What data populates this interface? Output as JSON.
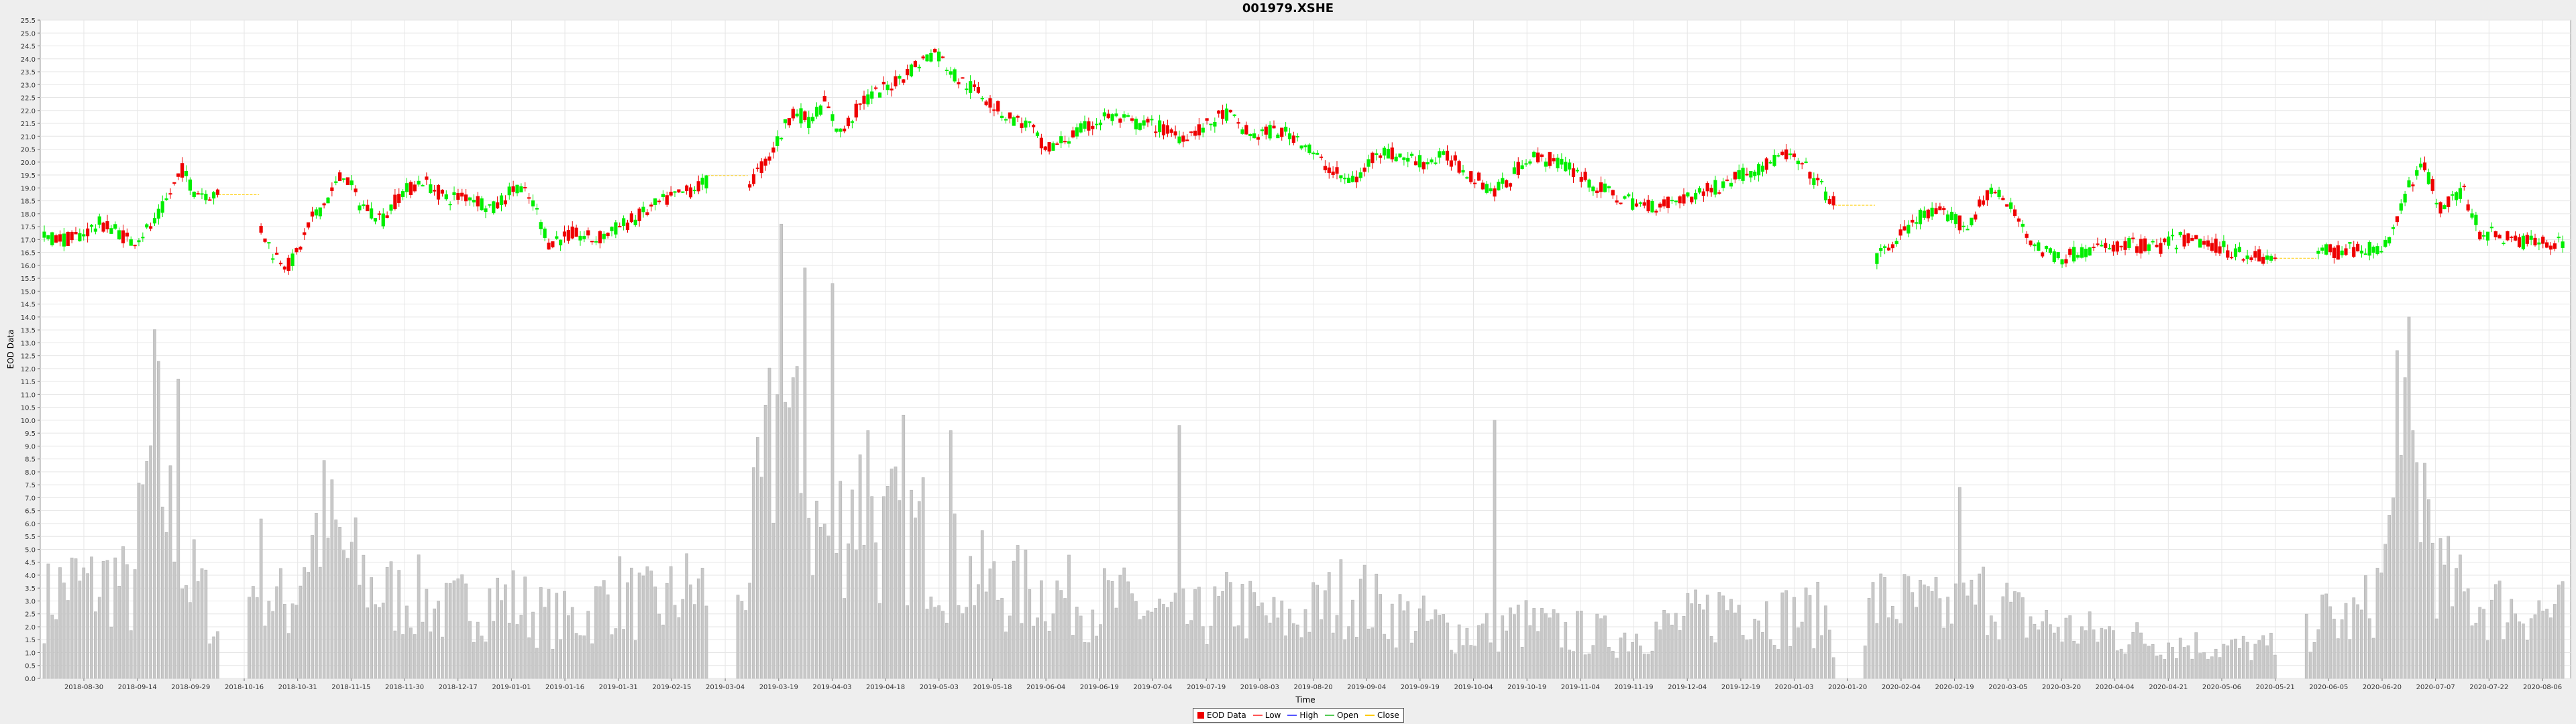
{
  "chart_data": {
    "type": "candlestick",
    "title": "001979.XSHE",
    "xlabel": "Time",
    "ylabel": "EOD Data",
    "ylim": [
      0.0,
      25.5
    ],
    "ytick_step": 0.5,
    "grid": true,
    "x_tick_labels": [
      "2018-08-30",
      "2018-09-14",
      "2018-09-29",
      "2018-10-16",
      "2018-10-31",
      "2018-11-15",
      "2018-11-30",
      "2018-12-17",
      "2019-01-01",
      "2019-01-16",
      "2019-01-31",
      "2019-02-15",
      "2019-03-04",
      "2019-03-19",
      "2019-04-03",
      "2019-04-18",
      "2019-05-03",
      "2019-05-18",
      "2019-06-04",
      "2019-06-19",
      "2019-07-04",
      "2019-07-19",
      "2019-08-03",
      "2019-08-20",
      "2019-09-04",
      "2019-09-19",
      "2019-10-04",
      "2019-10-19",
      "2019-11-04",
      "2019-11-19",
      "2019-12-04",
      "2019-12-19",
      "2020-01-03",
      "2020-01-20",
      "2020-02-04",
      "2020-02-19",
      "2020-03-05",
      "2020-03-20",
      "2020-04-04",
      "2020-04-21",
      "2020-05-06",
      "2020-05-21",
      "2020-06-05",
      "2020-06-20",
      "2020-07-07",
      "2020-07-22",
      "2020-08-06"
    ],
    "price_path": [
      [
        0,
        17.1
      ],
      [
        7,
        17.0
      ],
      [
        14,
        17.6
      ],
      [
        18,
        17.4
      ],
      [
        22,
        16.9
      ],
      [
        28,
        17.6
      ],
      [
        32,
        18.8
      ],
      [
        35,
        19.7
      ],
      [
        38,
        18.9
      ],
      [
        44,
        18.7
      ],
      [
        48,
        null
      ],
      [
        54,
        17.7
      ],
      [
        58,
        16.5
      ],
      [
        62,
        16.0
      ],
      [
        64,
        16.4
      ],
      [
        68,
        17.8
      ],
      [
        72,
        18.6
      ],
      [
        76,
        19.6
      ],
      [
        80,
        18.4
      ],
      [
        86,
        17.8
      ],
      [
        90,
        18.7
      ],
      [
        96,
        19.3
      ],
      [
        102,
        18.6
      ],
      [
        108,
        18.7
      ],
      [
        114,
        18.2
      ],
      [
        120,
        19.1
      ],
      [
        124,
        18.4
      ],
      [
        128,
        16.9
      ],
      [
        134,
        17.2
      ],
      [
        140,
        17.0
      ],
      [
        146,
        17.5
      ],
      [
        150,
        17.8
      ],
      [
        156,
        18.4
      ],
      [
        162,
        18.8
      ],
      [
        168,
        19.2
      ],
      [
        172,
        null
      ],
      [
        178,
        19.0
      ],
      [
        184,
        20.2
      ],
      [
        190,
        22.0
      ],
      [
        194,
        21.6
      ],
      [
        198,
        22.3
      ],
      [
        202,
        21.1
      ],
      [
        208,
        22.4
      ],
      [
        214,
        22.9
      ],
      [
        220,
        23.6
      ],
      [
        226,
        24.3
      ],
      [
        232,
        23.2
      ],
      [
        238,
        22.6
      ],
      [
        244,
        21.8
      ],
      [
        250,
        21.4
      ],
      [
        254,
        20.4
      ],
      [
        258,
        20.8
      ],
      [
        264,
        21.3
      ],
      [
        270,
        21.8
      ],
      [
        276,
        21.5
      ],
      [
        282,
        21.4
      ],
      [
        288,
        21.0
      ],
      [
        294,
        21.3
      ],
      [
        300,
        21.9
      ],
      [
        306,
        21.0
      ],
      [
        312,
        21.2
      ],
      [
        318,
        21.0
      ],
      [
        324,
        20.0
      ],
      [
        330,
        19.3
      ],
      [
        334,
        19.4
      ],
      [
        338,
        20.5
      ],
      [
        344,
        20.2
      ],
      [
        350,
        20.0
      ],
      [
        356,
        20.2
      ],
      [
        362,
        19.5
      ],
      [
        368,
        18.9
      ],
      [
        372,
        19.3
      ],
      [
        376,
        20.2
      ],
      [
        382,
        20.1
      ],
      [
        388,
        19.7
      ],
      [
        394,
        19.0
      ],
      [
        400,
        18.6
      ],
      [
        406,
        18.3
      ],
      [
        412,
        18.4
      ],
      [
        418,
        18.7
      ],
      [
        424,
        19.0
      ],
      [
        430,
        19.5
      ],
      [
        436,
        19.8
      ],
      [
        442,
        20.3
      ],
      [
        448,
        19.6
      ],
      [
        454,
        18.4
      ],
      [
        458,
        null
      ],
      [
        464,
        16.1
      ],
      [
        470,
        17.0
      ],
      [
        476,
        17.9
      ],
      [
        482,
        18.0
      ],
      [
        488,
        17.5
      ],
      [
        494,
        19.0
      ],
      [
        500,
        18.0
      ],
      [
        506,
        16.6
      ],
      [
        512,
        16.3
      ],
      [
        518,
        16.6
      ],
      [
        524,
        16.7
      ],
      [
        530,
        16.8
      ],
      [
        536,
        16.7
      ],
      [
        542,
        17.0
      ],
      [
        548,
        16.9
      ],
      [
        554,
        16.6
      ],
      [
        560,
        16.4
      ],
      [
        566,
        16.2
      ],
      [
        570,
        null
      ],
      [
        576,
        16.6
      ],
      [
        582,
        16.5
      ],
      [
        588,
        16.7
      ],
      [
        592,
        16.5
      ],
      [
        596,
        17.3
      ],
      [
        600,
        19.2
      ],
      [
        604,
        19.8
      ],
      [
        608,
        18.3
      ],
      [
        614,
        18.8
      ],
      [
        618,
        17.3
      ],
      [
        624,
        17.1
      ],
      [
        630,
        16.9
      ],
      [
        636,
        16.9
      ]
    ],
    "volume_path": [
      [
        0,
        3.0
      ],
      [
        6,
        3.8
      ],
      [
        12,
        3.6
      ],
      [
        18,
        4.0
      ],
      [
        22,
        3.2
      ],
      [
        28,
        9.6
      ],
      [
        32,
        6.2
      ],
      [
        36,
        4.0
      ],
      [
        40,
        3.5
      ],
      [
        48,
        0
      ],
      [
        54,
        4.8
      ],
      [
        58,
        3.2
      ],
      [
        62,
        2.8
      ],
      [
        66,
        4.8
      ],
      [
        70,
        6.2
      ],
      [
        74,
        5.5
      ],
      [
        78,
        4.5
      ],
      [
        84,
        3.5
      ],
      [
        90,
        3.2
      ],
      [
        96,
        3.2
      ],
      [
        102,
        2.6
      ],
      [
        108,
        3.0
      ],
      [
        114,
        3.2
      ],
      [
        120,
        3.0
      ],
      [
        126,
        2.5
      ],
      [
        132,
        2.3
      ],
      [
        138,
        2.5
      ],
      [
        144,
        3.5
      ],
      [
        150,
        3.0
      ],
      [
        156,
        2.8
      ],
      [
        162,
        3.5
      ],
      [
        168,
        3.5
      ],
      [
        172,
        0
      ],
      [
        178,
        4.0
      ],
      [
        184,
        8.5
      ],
      [
        188,
        11.0
      ],
      [
        192,
        7.5
      ],
      [
        196,
        6.0
      ],
      [
        200,
        5.5
      ],
      [
        206,
        7.5
      ],
      [
        212,
        5.5
      ],
      [
        218,
        6.0
      ],
      [
        224,
        5.5
      ],
      [
        230,
        4.5
      ],
      [
        236,
        4.0
      ],
      [
        242,
        3.5
      ],
      [
        248,
        3.5
      ],
      [
        254,
        3.5
      ],
      [
        260,
        3.2
      ],
      [
        266,
        3.0
      ],
      [
        272,
        3.0
      ],
      [
        278,
        2.8
      ],
      [
        284,
        2.5
      ],
      [
        290,
        2.3
      ],
      [
        296,
        2.5
      ],
      [
        302,
        3.0
      ],
      [
        308,
        2.5
      ],
      [
        314,
        2.2
      ],
      [
        320,
        2.5
      ],
      [
        326,
        3.0
      ],
      [
        332,
        3.5
      ],
      [
        338,
        2.8
      ],
      [
        344,
        2.5
      ],
      [
        350,
        2.2
      ],
      [
        356,
        2.0
      ],
      [
        362,
        1.8
      ],
      [
        368,
        2.0
      ],
      [
        374,
        2.2
      ],
      [
        380,
        2.0
      ],
      [
        386,
        1.8
      ],
      [
        392,
        1.8
      ],
      [
        398,
        1.6
      ],
      [
        404,
        1.8
      ],
      [
        410,
        2.0
      ],
      [
        416,
        2.2
      ],
      [
        422,
        2.5
      ],
      [
        428,
        3.0
      ],
      [
        434,
        2.8
      ],
      [
        440,
        2.5
      ],
      [
        446,
        2.5
      ],
      [
        452,
        2.5
      ],
      [
        458,
        0
      ],
      [
        464,
        3.0
      ],
      [
        470,
        3.0
      ],
      [
        476,
        2.8
      ],
      [
        482,
        2.6
      ],
      [
        488,
        2.8
      ],
      [
        494,
        3.5
      ],
      [
        500,
        2.5
      ],
      [
        506,
        2.2
      ],
      [
        512,
        2.0
      ],
      [
        518,
        1.8
      ],
      [
        524,
        1.8
      ],
      [
        530,
        1.6
      ],
      [
        536,
        1.5
      ],
      [
        542,
        1.4
      ],
      [
        548,
        1.3
      ],
      [
        554,
        1.2
      ],
      [
        560,
        1.2
      ],
      [
        566,
        1.2
      ],
      [
        570,
        0
      ],
      [
        576,
        2.5
      ],
      [
        582,
        2.2
      ],
      [
        588,
        2.5
      ],
      [
        592,
        3.5
      ],
      [
        596,
        6.0
      ],
      [
        600,
        8.5
      ],
      [
        604,
        7.5
      ],
      [
        608,
        4.0
      ],
      [
        614,
        3.2
      ],
      [
        618,
        3.0
      ],
      [
        624,
        2.8
      ],
      [
        630,
        2.8
      ],
      [
        636,
        2.6
      ]
    ],
    "volume_peaks": [
      [
        34,
        11.6
      ],
      [
        187,
        17.6
      ],
      [
        193,
        15.9
      ],
      [
        200,
        15.3
      ],
      [
        209,
        9.6
      ],
      [
        218,
        10.2
      ],
      [
        230,
        9.6
      ],
      [
        288,
        9.8
      ],
      [
        368,
        10.0
      ],
      [
        486,
        7.4
      ],
      [
        597,
        12.7
      ],
      [
        600,
        14.0
      ]
    ],
    "legend": [
      "EOD Data",
      "Low",
      "High",
      "Open",
      "Close"
    ],
    "colors": {
      "up": "#00ee00",
      "down": "#ee0000",
      "volume": "#c8c8c8",
      "grid": "#e6e6e6",
      "plot_bg": "#ffffff",
      "low": "#ff5555",
      "high": "#5555ff",
      "open": "#55cc55",
      "close": "#ffcc00"
    }
  }
}
